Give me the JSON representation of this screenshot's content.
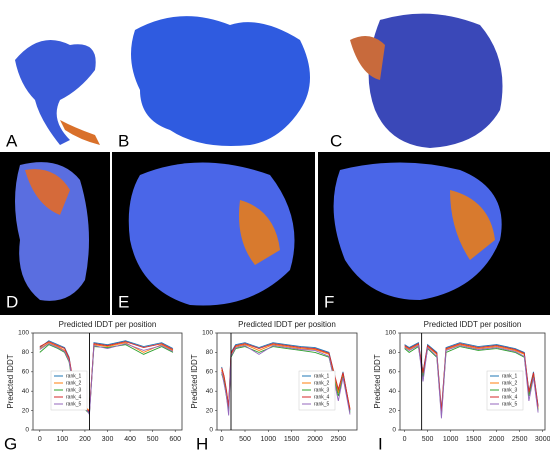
{
  "panels": {
    "labels": [
      "A",
      "B",
      "C",
      "D",
      "E",
      "F",
      "G",
      "H",
      "I"
    ]
  },
  "chart_data": [
    {
      "type": "line",
      "title": "Predicted lDDT per position",
      "y_label": "Predicted lDDT",
      "x": [
        0,
        40,
        80,
        110,
        130,
        150,
        170,
        190,
        210,
        220,
        240,
        300,
        380,
        460,
        540,
        590
      ],
      "series": [
        {
          "name": "rank_1",
          "color": "#1f77b4",
          "values": [
            85,
            92,
            88,
            85,
            75,
            45,
            30,
            25,
            20,
            18,
            90,
            88,
            92,
            86,
            90,
            84
          ]
        },
        {
          "name": "rank_2",
          "color": "#ff7f0e",
          "values": [
            84,
            90,
            86,
            82,
            72,
            42,
            32,
            27,
            22,
            20,
            88,
            86,
            90,
            80,
            88,
            82
          ]
        },
        {
          "name": "rank_3",
          "color": "#2ca02c",
          "values": [
            80,
            88,
            84,
            80,
            70,
            40,
            28,
            24,
            19,
            17,
            86,
            85,
            88,
            78,
            86,
            80
          ]
        },
        {
          "name": "rank_4",
          "color": "#d62728",
          "values": [
            86,
            91,
            87,
            84,
            74,
            48,
            34,
            26,
            21,
            19,
            89,
            87,
            91,
            85,
            89,
            83
          ]
        },
        {
          "name": "rank_5",
          "color": "#9467bd",
          "values": [
            83,
            89,
            85,
            81,
            71,
            44,
            30,
            23,
            20,
            16,
            87,
            84,
            89,
            82,
            87,
            81
          ]
        }
      ],
      "vlines": [
        220
      ],
      "xlim": [
        -30,
        630
      ],
      "xticks": [
        0,
        100,
        200,
        300,
        400,
        500,
        600
      ],
      "ylim": [
        0,
        100
      ],
      "yticks": [
        0,
        20,
        40,
        60,
        80,
        100
      ],
      "legend": "lower left"
    },
    {
      "type": "line",
      "title": "Predicted lDDT per position",
      "y_label": "Predicted lDDT",
      "x": [
        0,
        50,
        100,
        150,
        200,
        300,
        500,
        800,
        1100,
        1400,
        1700,
        2000,
        2300,
        2500,
        2600,
        2750
      ],
      "series": [
        {
          "name": "rank_1",
          "color": "#1f77b4",
          "values": [
            65,
            55,
            40,
            25,
            80,
            88,
            90,
            85,
            90,
            88,
            86,
            85,
            80,
            40,
            60,
            20
          ]
        },
        {
          "name": "rank_2",
          "color": "#ff7f0e",
          "values": [
            62,
            52,
            38,
            22,
            78,
            86,
            88,
            82,
            88,
            86,
            84,
            83,
            78,
            38,
            58,
            22
          ]
        },
        {
          "name": "rank_3",
          "color": "#2ca02c",
          "values": [
            58,
            50,
            35,
            20,
            75,
            84,
            86,
            80,
            86,
            84,
            82,
            80,
            75,
            35,
            55,
            18
          ]
        },
        {
          "name": "rank_4",
          "color": "#d62728",
          "values": [
            64,
            56,
            42,
            24,
            79,
            87,
            89,
            84,
            89,
            87,
            85,
            84,
            79,
            42,
            59,
            21
          ]
        },
        {
          "name": "rank_5",
          "color": "#9467bd",
          "values": [
            60,
            48,
            36,
            15,
            76,
            85,
            87,
            78,
            87,
            85,
            83,
            82,
            76,
            30,
            54,
            16
          ]
        }
      ],
      "vlines": [
        200
      ],
      "xlim": [
        -100,
        2900
      ],
      "xticks": [
        0,
        500,
        1000,
        1500,
        2000,
        2500
      ],
      "ylim": [
        0,
        100
      ],
      "yticks": [
        0,
        20,
        40,
        60,
        80,
        100
      ],
      "legend": "lower right"
    },
    {
      "type": "line",
      "title": "Predicted lDDT per position",
      "y_label": "Predicted lDDT",
      "x": [
        0,
        100,
        300,
        400,
        500,
        700,
        800,
        900,
        1200,
        1600,
        2000,
        2400,
        2600,
        2700,
        2800,
        2900
      ],
      "series": [
        {
          "name": "rank_1",
          "color": "#1f77b4",
          "values": [
            88,
            85,
            90,
            60,
            88,
            80,
            20,
            85,
            90,
            86,
            88,
            84,
            80,
            40,
            60,
            25
          ]
        },
        {
          "name": "rank_2",
          "color": "#ff7f0e",
          "values": [
            86,
            83,
            88,
            58,
            86,
            78,
            18,
            83,
            88,
            84,
            86,
            82,
            78,
            38,
            58,
            22
          ]
        },
        {
          "name": "rank_3",
          "color": "#2ca02c",
          "values": [
            84,
            80,
            86,
            55,
            84,
            75,
            15,
            80,
            86,
            82,
            84,
            80,
            75,
            35,
            55,
            20
          ]
        },
        {
          "name": "rank_4",
          "color": "#d62728",
          "values": [
            87,
            84,
            89,
            59,
            87,
            79,
            19,
            84,
            89,
            85,
            87,
            83,
            79,
            39,
            59,
            24
          ]
        },
        {
          "name": "rank_5",
          "color": "#9467bd",
          "values": [
            85,
            82,
            87,
            50,
            85,
            76,
            12,
            82,
            87,
            83,
            85,
            81,
            76,
            30,
            54,
            18
          ]
        }
      ],
      "vlines": [
        370
      ],
      "xlim": [
        -100,
        3050
      ],
      "xticks": [
        0,
        500,
        1000,
        1500,
        2000,
        2500,
        3000
      ],
      "ylim": [
        0,
        100
      ],
      "yticks": [
        0,
        20,
        40,
        60,
        80,
        100
      ],
      "legend": "lower right"
    }
  ]
}
